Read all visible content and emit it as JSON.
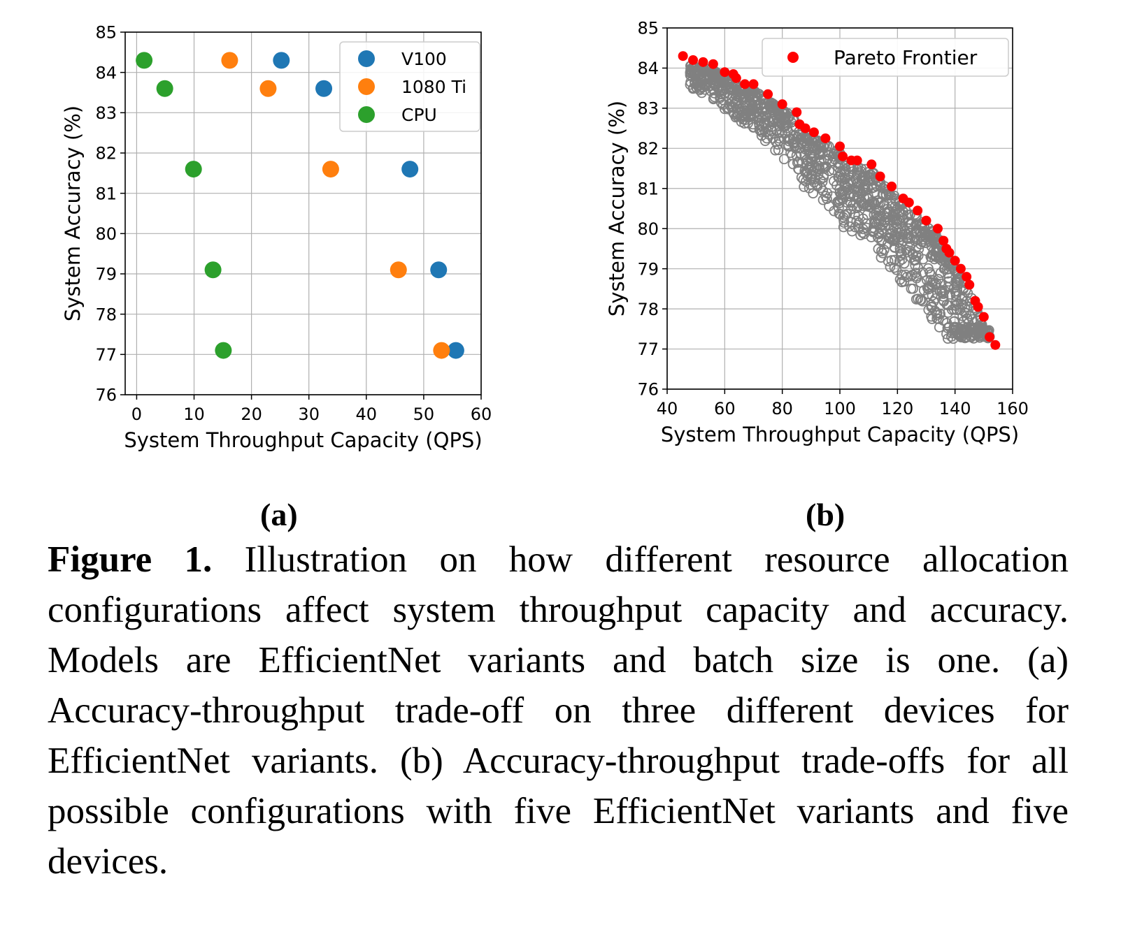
{
  "chart_data": [
    {
      "type": "scatter",
      "panel": "(a)",
      "xlabel": "System Throughput Capacity (QPS)",
      "ylabel": "System Accuracy (%)",
      "xlim": [
        -2,
        60
      ],
      "ylim": [
        76,
        85
      ],
      "xticks": [
        0,
        10,
        20,
        30,
        40,
        50,
        60
      ],
      "yticks": [
        76,
        77,
        78,
        79,
        80,
        81,
        82,
        83,
        84,
        85
      ],
      "grid": true,
      "legend_position": "top-right",
      "series": [
        {
          "name": "V100",
          "color": "#1f77b4",
          "points": [
            [
              25.2,
              84.3
            ],
            [
              32.6,
              83.6
            ],
            [
              47.6,
              81.6
            ],
            [
              52.6,
              79.1
            ],
            [
              55.6,
              77.1
            ]
          ]
        },
        {
          "name": "1080 Ti",
          "color": "#ff7f0e",
          "points": [
            [
              16.2,
              84.3
            ],
            [
              22.9,
              83.6
            ],
            [
              33.8,
              81.6
            ],
            [
              45.6,
              79.1
            ],
            [
              53.1,
              77.1
            ]
          ]
        },
        {
          "name": "CPU",
          "color": "#2ca02c",
          "points": [
            [
              1.3,
              84.3
            ],
            [
              4.9,
              83.6
            ],
            [
              9.9,
              81.6
            ],
            [
              13.3,
              79.1
            ],
            [
              15.1,
              77.1
            ]
          ]
        }
      ]
    },
    {
      "type": "scatter",
      "panel": "(b)",
      "xlabel": "System Throughput Capacity (QPS)",
      "ylabel": "System Accuracy (%)",
      "xlim": [
        40,
        160
      ],
      "ylim": [
        76,
        85
      ],
      "xticks": [
        40,
        60,
        80,
        100,
        120,
        140,
        160
      ],
      "yticks": [
        76,
        77,
        78,
        79,
        80,
        81,
        82,
        83,
        84,
        85
      ],
      "grid": true,
      "legend_position": "top-right",
      "series": [
        {
          "name": "Pareto Frontier",
          "color": "#ff0000",
          "points": [
            [
              45.5,
              84.3
            ],
            [
              49,
              84.2
            ],
            [
              52.5,
              84.15
            ],
            [
              56,
              84.1
            ],
            [
              60,
              83.9
            ],
            [
              63,
              83.85
            ],
            [
              64,
              83.75
            ],
            [
              67,
              83.6
            ],
            [
              70,
              83.6
            ],
            [
              75,
              83.35
            ],
            [
              80,
              83.1
            ],
            [
              85,
              82.9
            ],
            [
              86,
              82.6
            ],
            [
              88,
              82.5
            ],
            [
              91,
              82.4
            ],
            [
              95,
              82.25
            ],
            [
              100,
              82.05
            ],
            [
              101,
              81.8
            ],
            [
              104,
              81.7
            ],
            [
              106,
              81.7
            ],
            [
              111,
              81.6
            ],
            [
              114,
              81.3
            ],
            [
              118,
              81.05
            ],
            [
              122,
              80.75
            ],
            [
              124,
              80.65
            ],
            [
              127,
              80.45
            ],
            [
              130,
              80.2
            ],
            [
              134,
              80.0
            ],
            [
              136,
              79.7
            ],
            [
              137,
              79.5
            ],
            [
              138,
              79.4
            ],
            [
              140,
              79.2
            ],
            [
              142,
              79.0
            ],
            [
              144,
              78.8
            ],
            [
              145,
              78.6
            ],
            [
              147,
              78.2
            ],
            [
              148,
              78.05
            ],
            [
              150,
              77.8
            ],
            [
              152,
              77.3
            ],
            [
              154,
              77.1
            ]
          ]
        },
        {
          "name": "",
          "color": "#808080",
          "style": "hollow",
          "generator": {
            "count": 1200,
            "seed": 7
          }
        }
      ]
    }
  ],
  "panels": {
    "a": "(a)",
    "b": "(b)"
  },
  "caption": {
    "lead": "Figure 1.",
    "text": " Illustration on how different resource allocation configurations affect system throughput capacity and accuracy. Models are EfficientNet variants and batch size is one. (a) Accuracy-throughput trade-off on three different devices for EfficientNet variants. (b) Accuracy-throughput trade-offs for all possible configurations with five EfficientNet variants and five devices."
  }
}
